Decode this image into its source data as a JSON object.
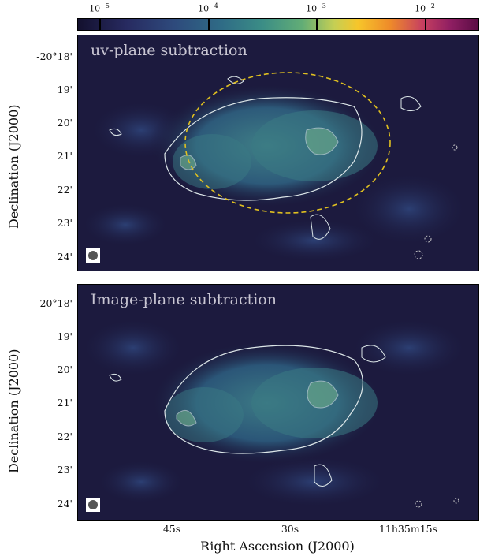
{
  "colorbar": {
    "tick_labels": [
      "10",
      "10",
      "10",
      "10"
    ],
    "tick_exps": [
      "−5",
      "−4",
      "−3",
      "−2"
    ]
  },
  "panels": [
    {
      "title": "uv-plane subtraction",
      "y_tick_labels": [
        "-20°18'",
        "19'",
        "20'",
        "21'",
        "22'",
        "23'",
        "24'"
      ],
      "y_title": "Declination (J2000)",
      "ellipse_color": "#e0c020"
    },
    {
      "title": "Image-plane subtraction",
      "y_tick_labels": [
        "-20°18'",
        "19'",
        "20'",
        "21'",
        "22'",
        "23'",
        "24'"
      ],
      "y_title": "Declination (J2000)"
    }
  ],
  "x_tick_labels": [
    "45s",
    "30s",
    "11h35m15s"
  ],
  "x_title": "Right Ascension (J2000)"
}
